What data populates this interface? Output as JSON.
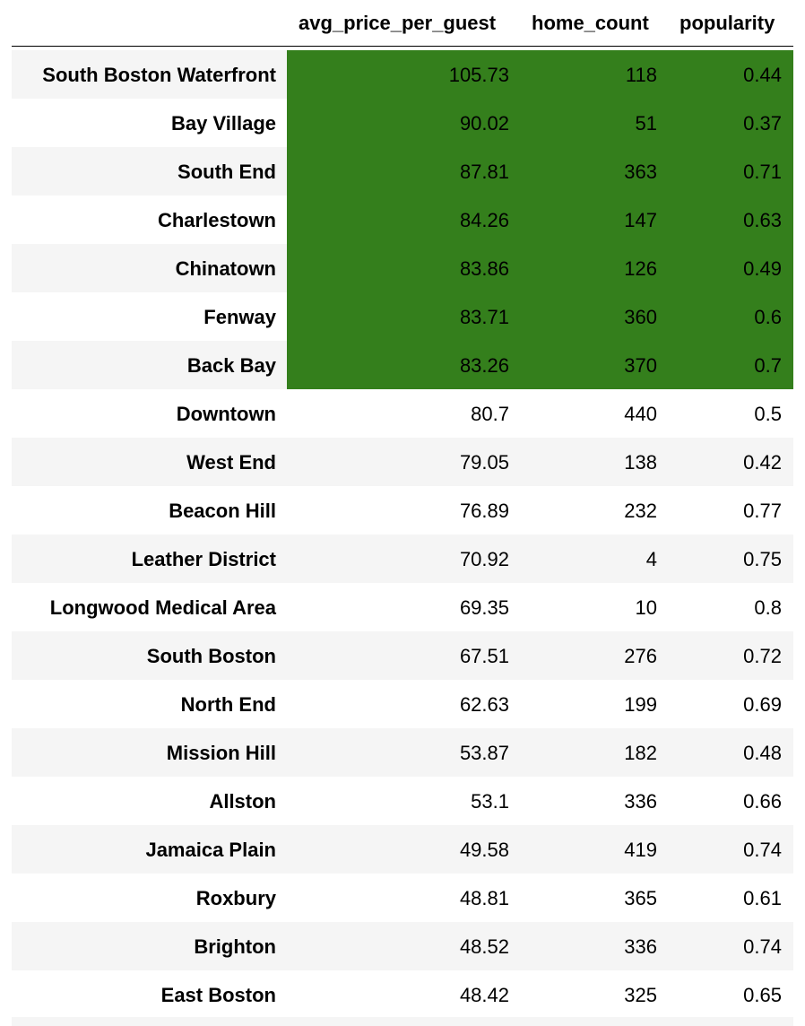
{
  "chart_data": {
    "type": "table",
    "columns": [
      "avg_price_per_guest",
      "home_count",
      "popularity"
    ],
    "highlight_color": "#347f1c",
    "highlighted_row_count": 7,
    "rows": [
      {
        "neighbourhood": "South Boston Waterfront",
        "avg_price_per_guest": "105.73",
        "home_count": "118",
        "popularity": "0.44"
      },
      {
        "neighbourhood": "Bay Village",
        "avg_price_per_guest": "90.02",
        "home_count": "51",
        "popularity": "0.37"
      },
      {
        "neighbourhood": "South End",
        "avg_price_per_guest": "87.81",
        "home_count": "363",
        "popularity": "0.71"
      },
      {
        "neighbourhood": "Charlestown",
        "avg_price_per_guest": "84.26",
        "home_count": "147",
        "popularity": "0.63"
      },
      {
        "neighbourhood": "Chinatown",
        "avg_price_per_guest": "83.86",
        "home_count": "126",
        "popularity": "0.49"
      },
      {
        "neighbourhood": "Fenway",
        "avg_price_per_guest": "83.71",
        "home_count": "360",
        "popularity": "0.6"
      },
      {
        "neighbourhood": "Back Bay",
        "avg_price_per_guest": "83.26",
        "home_count": "370",
        "popularity": "0.7"
      },
      {
        "neighbourhood": "Downtown",
        "avg_price_per_guest": "80.7",
        "home_count": "440",
        "popularity": "0.5"
      },
      {
        "neighbourhood": "West End",
        "avg_price_per_guest": "79.05",
        "home_count": "138",
        "popularity": "0.42"
      },
      {
        "neighbourhood": "Beacon Hill",
        "avg_price_per_guest": "76.89",
        "home_count": "232",
        "popularity": "0.77"
      },
      {
        "neighbourhood": "Leather District",
        "avg_price_per_guest": "70.92",
        "home_count": "4",
        "popularity": "0.75"
      },
      {
        "neighbourhood": "Longwood Medical Area",
        "avg_price_per_guest": "69.35",
        "home_count": "10",
        "popularity": "0.8"
      },
      {
        "neighbourhood": "South Boston",
        "avg_price_per_guest": "67.51",
        "home_count": "276",
        "popularity": "0.72"
      },
      {
        "neighbourhood": "North End",
        "avg_price_per_guest": "62.63",
        "home_count": "199",
        "popularity": "0.69"
      },
      {
        "neighbourhood": "Mission Hill",
        "avg_price_per_guest": "53.87",
        "home_count": "182",
        "popularity": "0.48"
      },
      {
        "neighbourhood": "Allston",
        "avg_price_per_guest": "53.1",
        "home_count": "336",
        "popularity": "0.66"
      },
      {
        "neighbourhood": "Jamaica Plain",
        "avg_price_per_guest": "49.58",
        "home_count": "419",
        "popularity": "0.74"
      },
      {
        "neighbourhood": "Roxbury",
        "avg_price_per_guest": "48.81",
        "home_count": "365",
        "popularity": "0.61"
      },
      {
        "neighbourhood": "Brighton",
        "avg_price_per_guest": "48.52",
        "home_count": "336",
        "popularity": "0.74"
      },
      {
        "neighbourhood": "East Boston",
        "avg_price_per_guest": "48.42",
        "home_count": "325",
        "popularity": "0.65"
      }
    ]
  }
}
